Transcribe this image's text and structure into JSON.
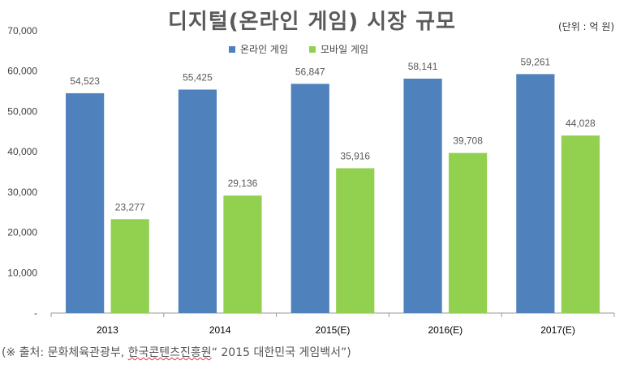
{
  "colors": {
    "online": "#4f81bd",
    "mobile": "#92d050",
    "axis": "#999999",
    "text": "#404040",
    "value": "#595959"
  },
  "chart_data": {
    "type": "bar",
    "title": "디지털(온라인 게임) 시장 규모",
    "unit": "(단위 : 억 원)",
    "categories": [
      "2013",
      "2014",
      "2015(E)",
      "2016(E)",
      "2017(E)"
    ],
    "series": [
      {
        "name": "온라인 게임",
        "values": [
          54523,
          55425,
          56847,
          58141,
          59261
        ],
        "labels": [
          "54,523",
          "55,425",
          "56,847",
          "58,141",
          "59,261"
        ]
      },
      {
        "name": "모바일 게임",
        "values": [
          23277,
          29136,
          35916,
          39708,
          44028
        ],
        "labels": [
          "23,277",
          "29,136",
          "35,916",
          "39,708",
          "44,028"
        ]
      }
    ],
    "ylim": [
      0,
      70000
    ],
    "yticks": [
      "-",
      "10,000",
      "20,000",
      "30,000",
      "40,000",
      "50,000",
      "60,000",
      "70,000"
    ],
    "grid": false,
    "legend": "top-center"
  },
  "source": {
    "prefix": "(※ 출처: 문화체육관광부, ",
    "underlined": "한국콘텐츠진흥원",
    "suffix": "“ 2015 대한민국 게임백서”)"
  }
}
